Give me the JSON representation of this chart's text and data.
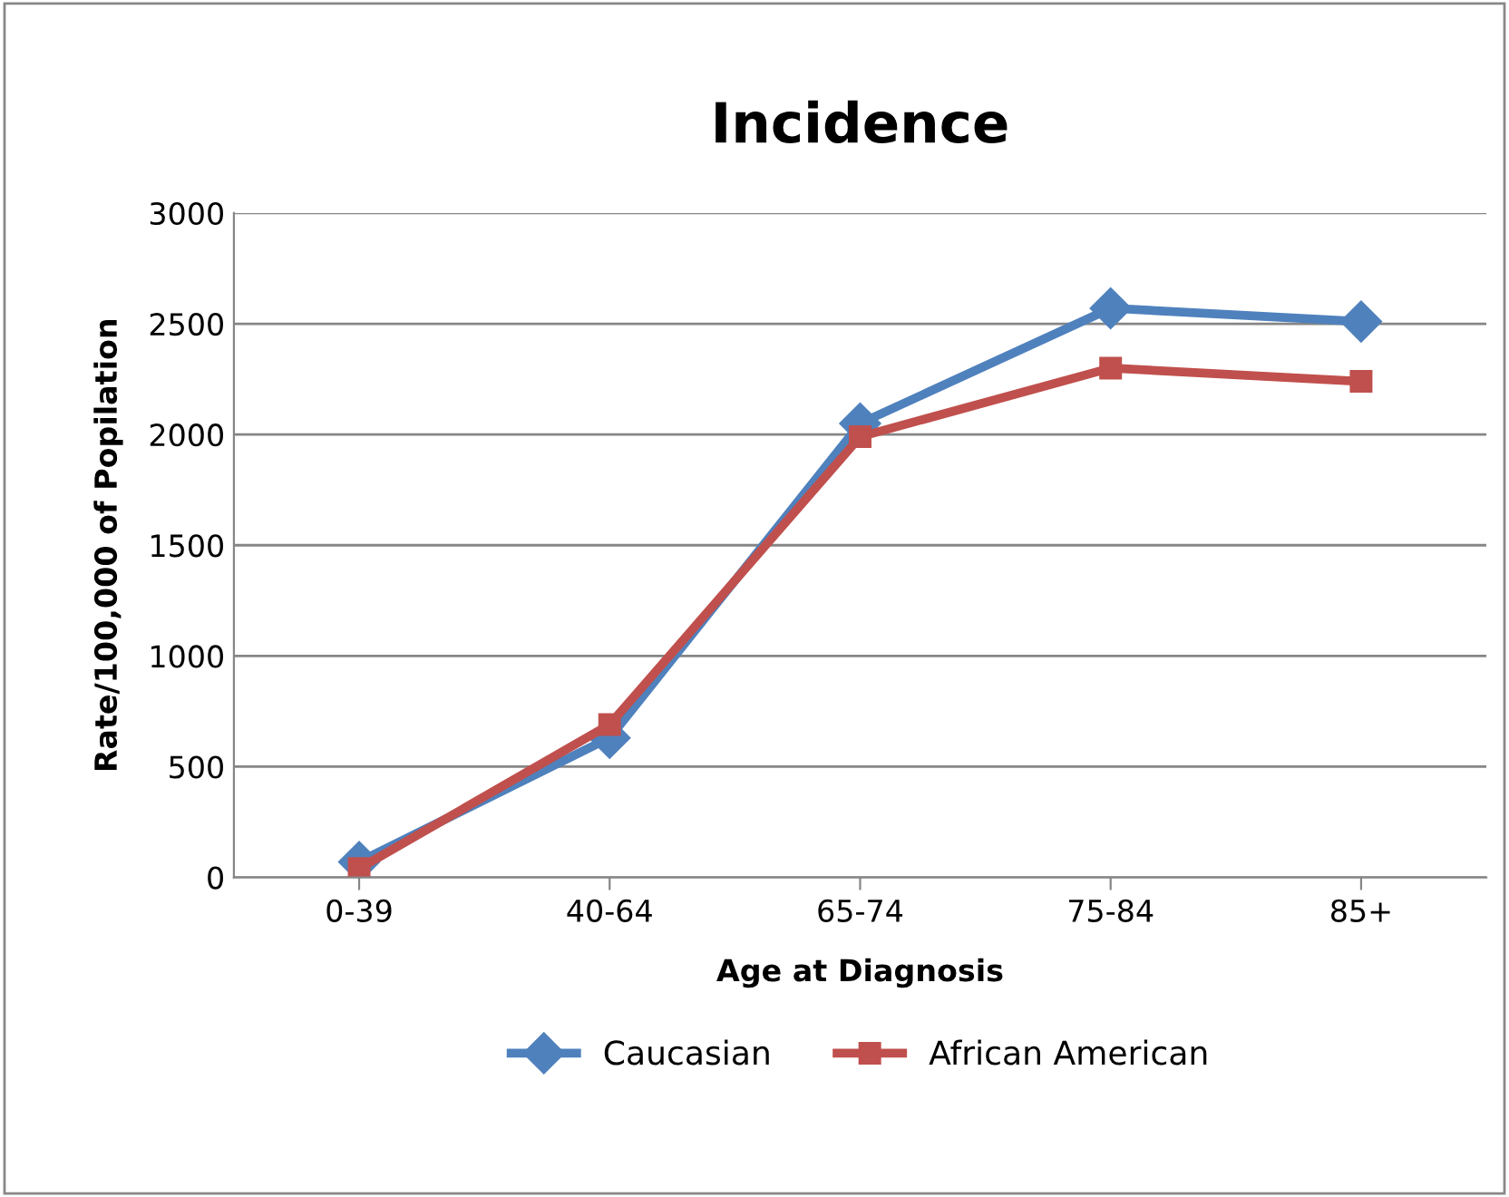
{
  "chart_data": {
    "type": "line",
    "title": "Incidence",
    "xlabel": "Age at Diagnosis",
    "ylabel": "Rate/100,000 of Popilation",
    "categories": [
      "0-39",
      "40-64",
      "65-74",
      "75-84",
      "85+"
    ],
    "series": [
      {
        "name": "Caucasian",
        "color": "#4f81bd",
        "marker": "diamond",
        "values": [
          70,
          630,
          2050,
          2570,
          2510
        ]
      },
      {
        "name": "African American",
        "color": "#c0504d",
        "marker": "square",
        "values": [
          40,
          690,
          1990,
          2300,
          2240
        ]
      }
    ],
    "ylim": [
      0,
      3000
    ],
    "yticks": [
      0,
      500,
      1000,
      1500,
      2000,
      2500,
      3000
    ],
    "grid": "y",
    "legend": "bottom",
    "line_style": "solid"
  }
}
